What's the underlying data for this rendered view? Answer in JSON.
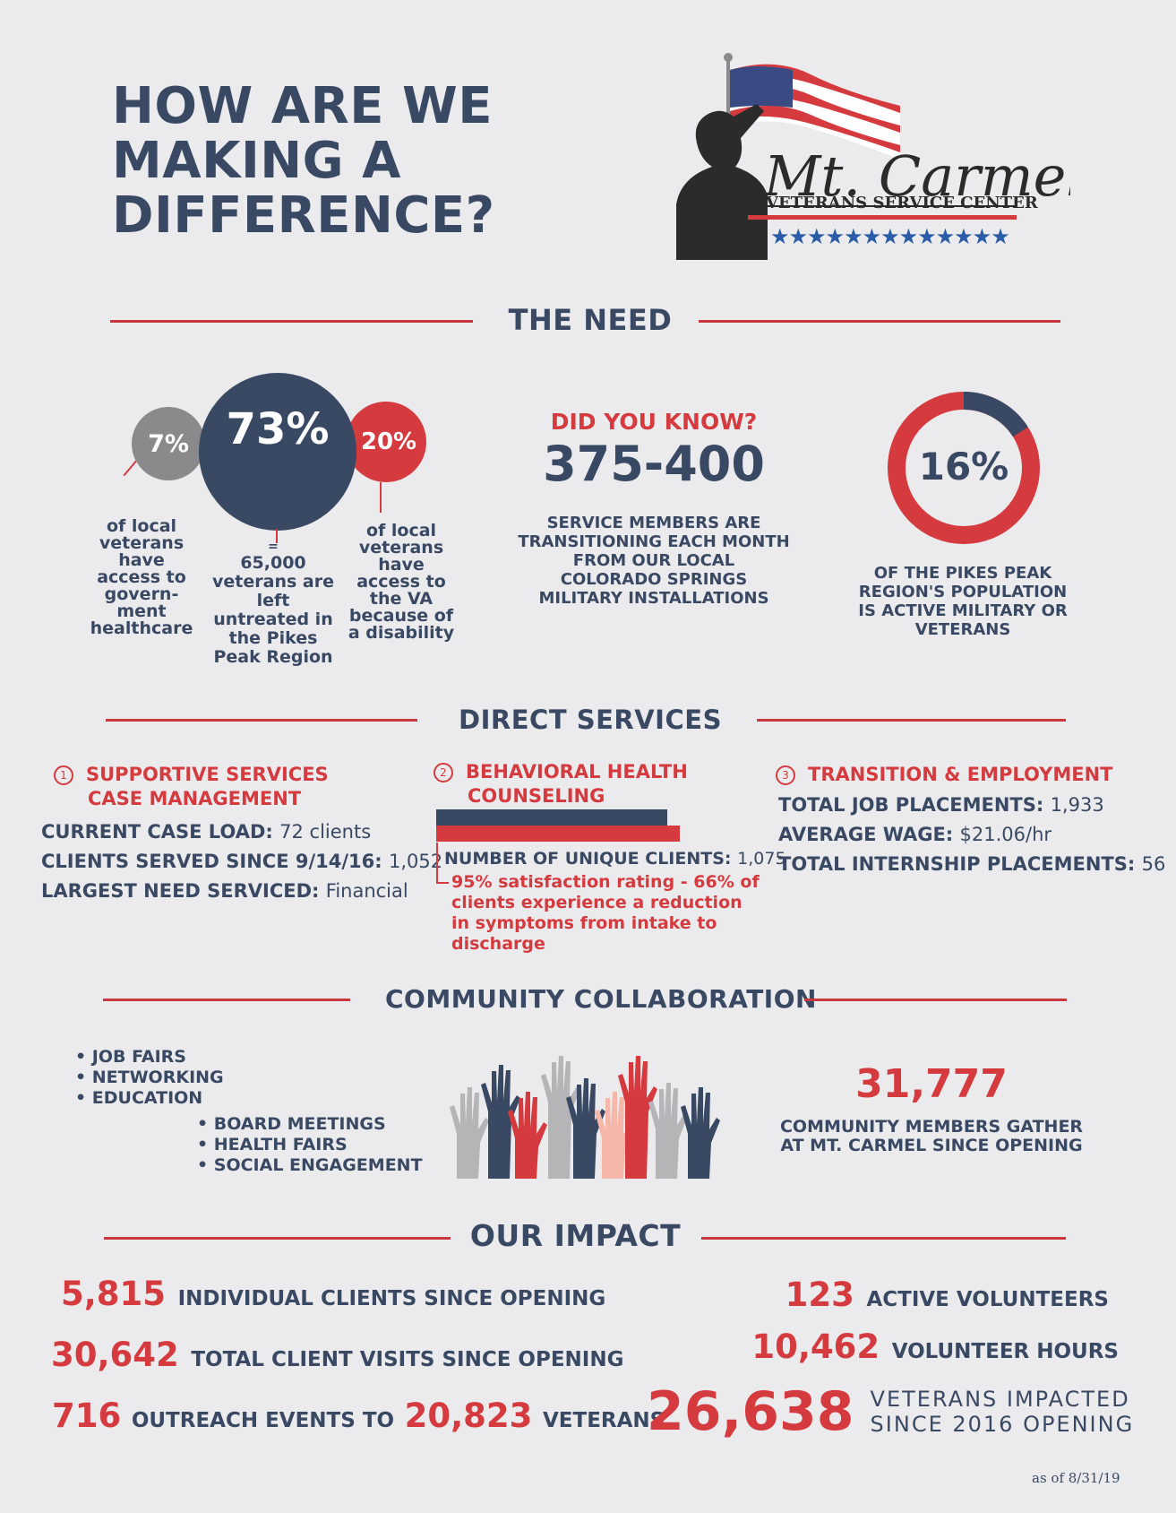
{
  "title": [
    "HOW ARE WE",
    "MAKING A",
    "DIFFERENCE?"
  ],
  "logo": {
    "script": "Mt. Carmel",
    "subtitle": "VETERANS SERVICE CENTER",
    "stars": "★★★★★★★★★★★★★"
  },
  "colors": {
    "navy": "#3a4963",
    "red": "#d53a3e",
    "gray": "#8a8a8c",
    "background": "#ebebed"
  },
  "need": {
    "heading": "THE NEED",
    "circles": [
      {
        "value": "7%",
        "caption": [
          "of local",
          "veterans",
          "have",
          "access to",
          "govern-",
          "ment",
          "healthcare"
        ]
      },
      {
        "value": "73%",
        "caption": [
          "=",
          "65,000",
          "veterans are",
          "left",
          "untreated in",
          "the Pikes",
          "Peak Region"
        ]
      },
      {
        "value": "20%",
        "caption": [
          "of local",
          "veterans",
          "have",
          "access to",
          "the VA",
          "because of",
          "a disability"
        ]
      }
    ],
    "did_you_know": {
      "label": "DID YOU KNOW?",
      "value": "375-400",
      "caption": [
        "SERVICE MEMBERS ARE",
        "TRANSITIONING EACH MONTH",
        "FROM OUR LOCAL",
        "COLORADO SPRINGS",
        "MILITARY INSTALLATIONS"
      ]
    },
    "donut": {
      "value": "16%",
      "fraction": 0.16,
      "caption": [
        "OF THE PIKES PEAK",
        "REGION'S POPULATION",
        "IS ACTIVE MILITARY OR",
        "VETERANS"
      ]
    }
  },
  "direct": {
    "heading": "DIRECT SERVICES",
    "col1": {
      "number": "1",
      "title": [
        "SUPPORTIVE SERVICES",
        "CASE MANAGEMENT"
      ],
      "rows": [
        {
          "label": "CURRENT CASE LOAD:",
          "value": "72 clients"
        },
        {
          "label": "CLIENTS SERVED SINCE 9/14/16:",
          "value": "1,052"
        },
        {
          "label": "LARGEST NEED SERVICED:",
          "value": "Financial"
        }
      ]
    },
    "col2": {
      "number": "2",
      "title": [
        "BEHAVIORAL HEALTH",
        "COUNSELING"
      ],
      "row": {
        "label": "NUMBER OF UNIQUE CLIENTS:",
        "value": "1,075"
      },
      "note": [
        "95% satisfaction rating - 66% of",
        "clients experience a reduction",
        "in symptoms from intake to",
        "discharge"
      ]
    },
    "col3": {
      "number": "3",
      "title": "TRANSITION & EMPLOYMENT",
      "rows": [
        {
          "label": "TOTAL JOB PLACEMENTS:",
          "value": "1,933"
        },
        {
          "label": "AVERAGE WAGE:",
          "value": "$21.06/hr"
        },
        {
          "label": "TOTAL INTERNSHIP PLACEMENTS:",
          "value": "56"
        }
      ]
    }
  },
  "community": {
    "heading": "COMMUNITY COLLABORATION",
    "list1": [
      "• JOB FAIRS",
      "• NETWORKING",
      "• EDUCATION"
    ],
    "list2": [
      "• BOARD MEETINGS",
      "• HEALTH FAIRS",
      "• SOCIAL ENGAGEMENT"
    ],
    "stat": {
      "value": "31,777",
      "caption": [
        "COMMUNITY MEMBERS GATHER",
        "AT MT. CARMEL SINCE OPENING"
      ]
    }
  },
  "impact": {
    "heading": "OUR IMPACT",
    "clients": {
      "value": "5,815",
      "label": "INDIVIDUAL CLIENTS SINCE OPENING"
    },
    "visits": {
      "value": "30,642",
      "label": "TOTAL CLIENT VISITS SINCE OPENING"
    },
    "outreach": {
      "value": "716",
      "label": "OUTREACH EVENTS TO",
      "value2": "20,823",
      "label2": "VETERANS"
    },
    "volunteers": {
      "value": "123",
      "label": "ACTIVE VOLUNTEERS"
    },
    "hours": {
      "value": "10,462",
      "label": "VOLUNTEER HOURS"
    },
    "veterans": {
      "value": "26,638",
      "label1": "VETERANS IMPACTED",
      "label2": "SINCE 2016 OPENING"
    }
  },
  "footnote": "as of 8/31/19"
}
